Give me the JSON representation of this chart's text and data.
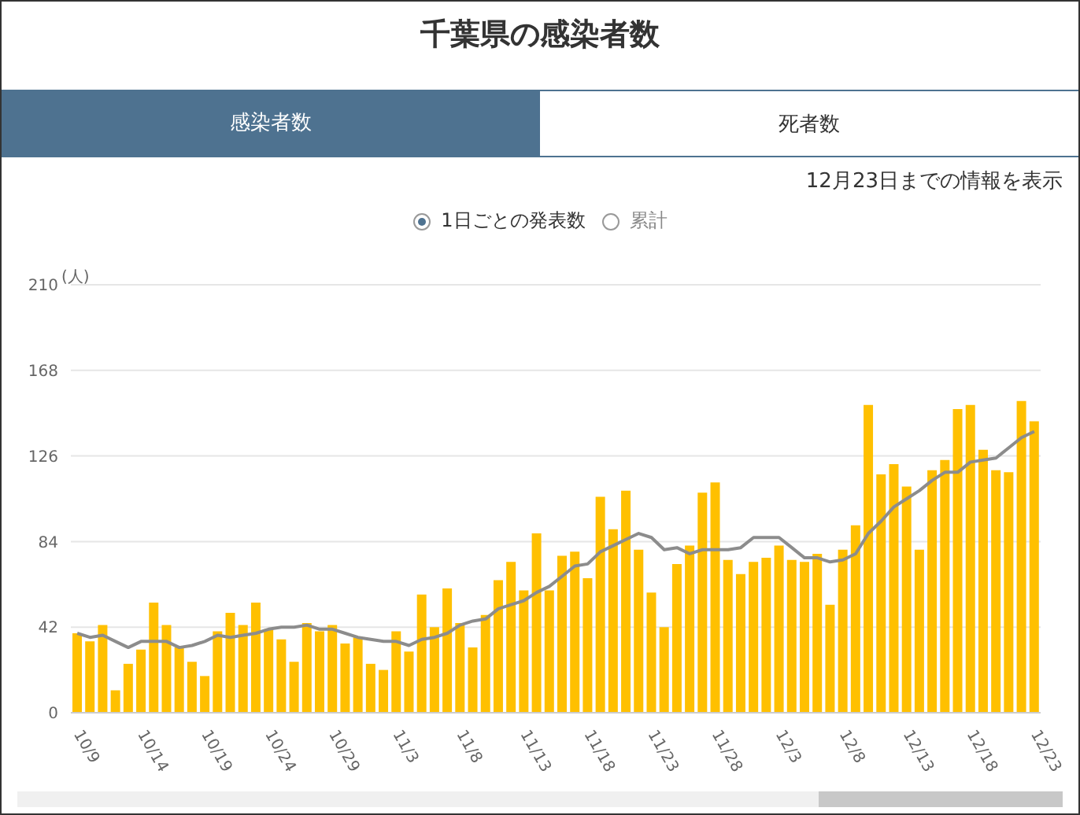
{
  "chart_data": {
    "type": "bar",
    "title": "千葉県の感染者数",
    "ylabel": "(人)",
    "annotations": [
      "感染者数",
      "死者数",
      "12月23日までの情報を表示",
      "1日ごとの発表数",
      "累計"
    ],
    "categories": [
      "10/9",
      null,
      null,
      null,
      null,
      "10/14",
      null,
      null,
      null,
      null,
      "10/19",
      null,
      null,
      null,
      null,
      "10/24",
      null,
      null,
      null,
      null,
      "10/29",
      null,
      null,
      null,
      null,
      "11/3",
      null,
      null,
      null,
      null,
      "11/8",
      null,
      null,
      null,
      null,
      "11/13",
      null,
      null,
      null,
      null,
      "11/18",
      null,
      null,
      null,
      null,
      "11/23",
      null,
      null,
      null,
      null,
      "11/28",
      null,
      null,
      null,
      null,
      "12/3",
      null,
      null,
      null,
      null,
      "12/8",
      null,
      null,
      null,
      null,
      "12/13",
      null,
      null,
      null,
      null,
      "12/18",
      null,
      null,
      null,
      null,
      "12/23"
    ],
    "series": [
      {
        "color": "#ffc000",
        "values": [
          39,
          35,
          43,
          11,
          24,
          31,
          54,
          43,
          32,
          25,
          18,
          40,
          49,
          43,
          54,
          41,
          36,
          25,
          44,
          40,
          43,
          34,
          37,
          24,
          21,
          40,
          30,
          58,
          42,
          61,
          44,
          32,
          48,
          65,
          74,
          60,
          88,
          60,
          77,
          79,
          66,
          106,
          90,
          109,
          80,
          59,
          42,
          73,
          82,
          108,
          113,
          75,
          68,
          74,
          76,
          82,
          75,
          74,
          78,
          53,
          80,
          92,
          151,
          117,
          122,
          111,
          80,
          119,
          124,
          149,
          151,
          129,
          119,
          118,
          153,
          143
        ]
      },
      {
        "type": "line",
        "color": "#8c8c8c",
        "values": [
          39,
          37,
          38,
          35,
          32,
          35,
          35,
          35,
          32,
          33,
          35,
          38,
          37,
          38,
          39,
          41,
          42,
          42,
          43,
          41,
          41,
          39,
          37,
          36,
          35,
          35,
          33,
          36,
          37,
          39,
          43,
          45,
          46,
          51,
          53,
          55,
          59,
          62,
          67,
          72,
          73,
          79,
          82,
          85,
          88,
          86,
          80,
          81,
          78,
          80,
          80,
          80,
          81,
          86,
          86,
          86,
          81,
          76,
          76,
          74,
          75,
          78,
          88,
          94,
          101,
          105,
          109,
          114,
          118,
          118,
          123,
          124,
          125,
          130,
          135,
          138
        ]
      }
    ],
    "ylim": [
      0,
      210
    ],
    "yticks": [
      0,
      42,
      84,
      126,
      168,
      210
    ],
    "grid": "y",
    "marker": "none",
    "line_style": "solid",
    "legend": false
  }
}
